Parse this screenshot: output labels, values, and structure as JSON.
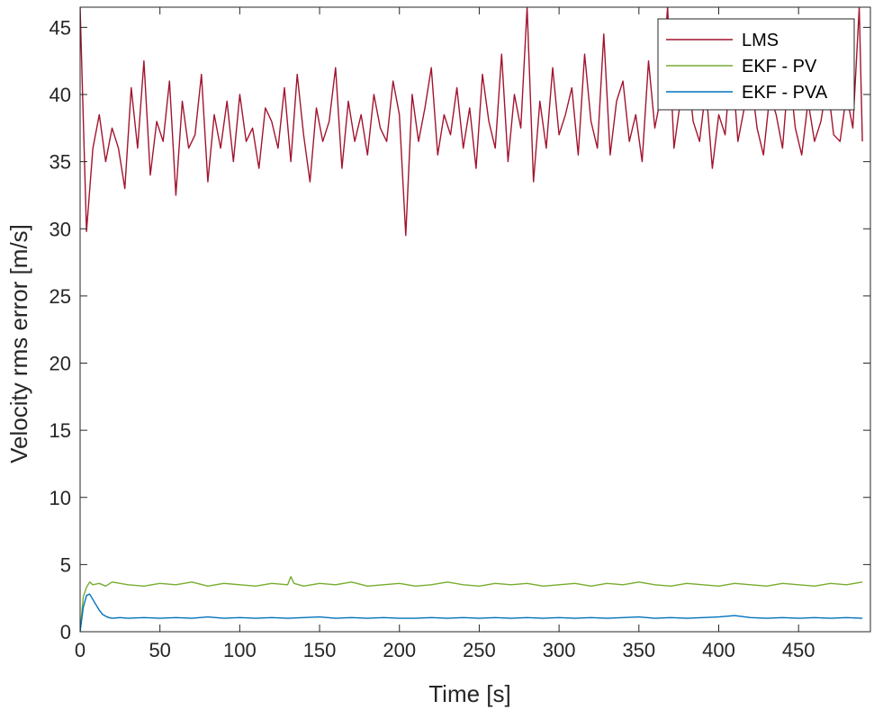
{
  "chart_data": {
    "type": "line",
    "title": "",
    "xlabel": "Time [s]",
    "ylabel": "Velocity rms error [m/s]",
    "xlim": [
      0,
      495
    ],
    "ylim": [
      0,
      46.5
    ],
    "x_ticks": [
      0,
      50,
      100,
      150,
      200,
      250,
      300,
      350,
      400,
      450
    ],
    "y_ticks": [
      0,
      5,
      10,
      15,
      20,
      25,
      30,
      35,
      40,
      45
    ],
    "grid": false,
    "legend_position": "top-right",
    "series": [
      {
        "name": "LMS",
        "color": "#a2142f",
        "x": [
          0,
          4,
          8,
          12,
          16,
          20,
          24,
          28,
          32,
          36,
          40,
          44,
          48,
          52,
          56,
          60,
          64,
          68,
          72,
          76,
          80,
          84,
          88,
          92,
          96,
          100,
          104,
          108,
          112,
          116,
          120,
          124,
          128,
          132,
          136,
          140,
          144,
          148,
          152,
          156,
          160,
          164,
          168,
          172,
          176,
          180,
          184,
          188,
          192,
          196,
          200,
          204,
          208,
          212,
          216,
          220,
          224,
          228,
          232,
          236,
          240,
          244,
          248,
          252,
          256,
          260,
          264,
          268,
          272,
          276,
          280,
          284,
          288,
          292,
          296,
          300,
          304,
          308,
          312,
          316,
          320,
          324,
          328,
          332,
          336,
          340,
          344,
          348,
          352,
          356,
          360,
          364,
          368,
          372,
          376,
          380,
          384,
          388,
          392,
          396,
          400,
          404,
          408,
          412,
          416,
          420,
          424,
          428,
          432,
          436,
          440,
          444,
          448,
          452,
          456,
          460,
          464,
          468,
          472,
          476,
          480,
          484,
          488,
          490
        ],
        "y": [
          46.5,
          29.8,
          36.0,
          38.5,
          35.0,
          37.5,
          36.0,
          33.0,
          40.5,
          36.0,
          42.5,
          34.0,
          38.0,
          36.5,
          41.0,
          32.5,
          39.5,
          36.0,
          37.0,
          41.5,
          33.5,
          38.5,
          36.0,
          39.5,
          35.0,
          40.0,
          36.5,
          37.5,
          34.5,
          39.0,
          38.0,
          36.0,
          40.5,
          35.0,
          41.5,
          37.0,
          33.5,
          39.0,
          36.5,
          38.0,
          42.0,
          34.5,
          39.5,
          36.5,
          38.5,
          35.5,
          40.0,
          37.5,
          36.5,
          41.0,
          38.5,
          29.5,
          40.0,
          36.5,
          39.0,
          42.0,
          35.5,
          38.5,
          37.0,
          40.5,
          36.0,
          39.0,
          34.5,
          41.5,
          38.0,
          36.0,
          43.0,
          35.0,
          40.0,
          37.5,
          46.5,
          33.5,
          39.5,
          36.0,
          42.0,
          37.0,
          38.5,
          40.5,
          35.5,
          43.0,
          38.0,
          36.0,
          44.5,
          35.5,
          39.5,
          41.0,
          36.5,
          38.5,
          35.0,
          42.5,
          37.5,
          40.0,
          46.5,
          36.0,
          39.5,
          42.5,
          38.0,
          36.5,
          40.5,
          34.5,
          38.5,
          37.0,
          43.0,
          36.5,
          39.0,
          41.5,
          37.5,
          35.5,
          40.0,
          38.5,
          36.0,
          42.0,
          37.5,
          35.5,
          39.5,
          36.5,
          38.0,
          41.0,
          37.0,
          36.5,
          40.0,
          37.5,
          46.5,
          36.5
        ]
      },
      {
        "name": "EKF - PV",
        "color": "#77ac30",
        "x": [
          0,
          2,
          4,
          6,
          8,
          12,
          16,
          20,
          30,
          40,
          50,
          60,
          70,
          80,
          90,
          100,
          110,
          120,
          130,
          132,
          134,
          140,
          150,
          160,
          170,
          180,
          190,
          200,
          210,
          220,
          230,
          240,
          250,
          260,
          270,
          280,
          290,
          300,
          310,
          320,
          330,
          340,
          350,
          360,
          370,
          380,
          390,
          400,
          410,
          420,
          430,
          440,
          450,
          460,
          470,
          480,
          490
        ],
        "y": [
          0,
          2.6,
          3.3,
          3.7,
          3.5,
          3.6,
          3.4,
          3.7,
          3.5,
          3.4,
          3.6,
          3.5,
          3.7,
          3.4,
          3.6,
          3.5,
          3.4,
          3.6,
          3.5,
          4.1,
          3.6,
          3.4,
          3.6,
          3.5,
          3.7,
          3.4,
          3.5,
          3.6,
          3.4,
          3.5,
          3.7,
          3.5,
          3.4,
          3.6,
          3.5,
          3.6,
          3.4,
          3.5,
          3.6,
          3.4,
          3.6,
          3.5,
          3.7,
          3.5,
          3.4,
          3.6,
          3.5,
          3.4,
          3.6,
          3.5,
          3.4,
          3.6,
          3.5,
          3.4,
          3.6,
          3.5,
          3.7
        ]
      },
      {
        "name": "EKF - PVA",
        "color": "#0072bd",
        "x": [
          0,
          2,
          4,
          6,
          8,
          10,
          12,
          14,
          16,
          18,
          20,
          25,
          30,
          40,
          50,
          60,
          70,
          80,
          90,
          100,
          110,
          120,
          130,
          140,
          150,
          160,
          170,
          180,
          190,
          200,
          210,
          220,
          230,
          240,
          250,
          260,
          270,
          280,
          290,
          300,
          310,
          320,
          330,
          340,
          350,
          360,
          370,
          380,
          390,
          400,
          410,
          420,
          430,
          440,
          450,
          460,
          470,
          480,
          490
        ],
        "y": [
          0,
          1.8,
          2.7,
          2.8,
          2.4,
          2.0,
          1.6,
          1.3,
          1.15,
          1.05,
          1.0,
          1.05,
          1.0,
          1.05,
          1.0,
          1.05,
          1.0,
          1.1,
          1.0,
          1.05,
          1.0,
          1.05,
          1.0,
          1.05,
          1.1,
          1.0,
          1.05,
          1.0,
          1.05,
          1.0,
          1.0,
          1.05,
          1.0,
          1.05,
          1.0,
          1.05,
          1.0,
          1.05,
          1.0,
          1.05,
          1.0,
          1.05,
          1.0,
          1.05,
          1.1,
          1.0,
          1.05,
          1.0,
          1.05,
          1.1,
          1.2,
          1.05,
          1.0,
          1.05,
          1.0,
          1.05,
          1.0,
          1.05,
          1.0
        ]
      }
    ]
  }
}
